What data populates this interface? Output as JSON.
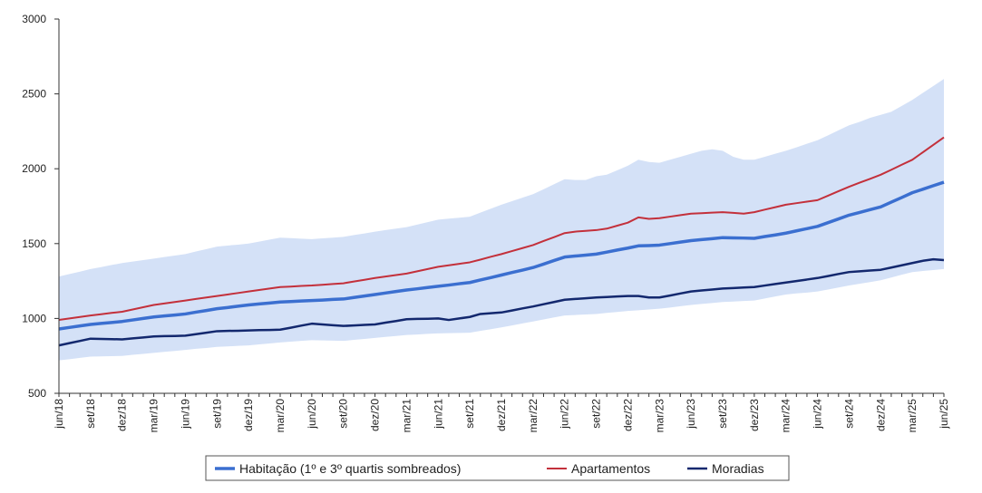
{
  "chart_data": {
    "type": "line",
    "categories": [
      "jun/18",
      null,
      null,
      "set/18",
      null,
      null,
      "dez/18",
      null,
      null,
      "mar/19",
      null,
      null,
      "jun/19",
      null,
      null,
      "set/19",
      null,
      null,
      "dez/19",
      null,
      null,
      "mar/20",
      null,
      null,
      "jun/20",
      null,
      null,
      "set/20",
      null,
      null,
      "dez/20",
      null,
      null,
      "mar/21",
      null,
      null,
      "jun/21",
      null,
      null,
      "set/21",
      null,
      null,
      "dez/21",
      null,
      null,
      "mar/22",
      null,
      null,
      "jun/22",
      null,
      null,
      "set/22",
      null,
      null,
      "dez/22",
      null,
      null,
      "mar/23",
      null,
      null,
      "jun/23",
      null,
      null,
      "set/23",
      null,
      null,
      "dez/23",
      null,
      null,
      "mar/24",
      null,
      null,
      "jun/24",
      null,
      null,
      "set/24",
      null,
      null,
      "dez/24",
      null,
      null,
      "mar/25",
      null,
      null,
      "jun/25"
    ],
    "band": {
      "color": "#d4e1f7",
      "upper": [
        1280,
        1297,
        1313,
        1330,
        1343,
        1357,
        1370,
        1380,
        1390,
        1400,
        1410,
        1420,
        1430,
        1447,
        1463,
        1480,
        1487,
        1493,
        1500,
        1513,
        1527,
        1540,
        1537,
        1533,
        1530,
        1535,
        1540,
        1545,
        1557,
        1568,
        1580,
        1590,
        1600,
        1610,
        1627,
        1643,
        1660,
        1667,
        1673,
        1680,
        1707,
        1733,
        1760,
        1783,
        1807,
        1830,
        1863,
        1897,
        1930,
        1925,
        1925,
        1950,
        1960,
        1990,
        2020,
        2060,
        2045,
        2040,
        2060,
        2080,
        2100,
        2120,
        2130,
        2120,
        2080,
        2060,
        2060,
        2080,
        2100,
        2120,
        2143,
        2167,
        2190,
        2223,
        2257,
        2290,
        2313,
        2340,
        2360,
        2380,
        2420,
        2460,
        2507,
        2553,
        2600
      ],
      "lower": [
        720,
        728,
        737,
        745,
        747,
        748,
        750,
        757,
        763,
        770,
        777,
        783,
        790,
        797,
        803,
        810,
        813,
        817,
        820,
        827,
        833,
        840,
        845,
        850,
        855,
        853,
        852,
        850,
        857,
        863,
        870,
        877,
        883,
        890,
        893,
        897,
        900,
        902,
        903,
        905,
        917,
        928,
        940,
        953,
        967,
        980,
        993,
        1007,
        1020,
        1023,
        1027,
        1030,
        1037,
        1043,
        1050,
        1055,
        1060,
        1065,
        1073,
        1082,
        1090,
        1097,
        1103,
        1110,
        1113,
        1117,
        1120,
        1133,
        1147,
        1160,
        1167,
        1173,
        1180,
        1193,
        1207,
        1220,
        1232,
        1243,
        1255,
        1273,
        1292,
        1310,
        1317,
        1323,
        1330
      ]
    },
    "series": [
      {
        "name": "Habitação (1º e 3º quartis sombreados)",
        "color": "#3b6fd0",
        "width": 3.5,
        "values": [
          930,
          940,
          950,
          960,
          967,
          973,
          980,
          990,
          1000,
          1010,
          1017,
          1023,
          1030,
          1042,
          1053,
          1065,
          1073,
          1082,
          1090,
          1097,
          1103,
          1110,
          1113,
          1117,
          1120,
          1123,
          1127,
          1130,
          1140,
          1150,
          1160,
          1170,
          1180,
          1190,
          1198,
          1207,
          1215,
          1223,
          1232,
          1240,
          1257,
          1273,
          1290,
          1307,
          1323,
          1340,
          1363,
          1387,
          1410,
          1417,
          1423,
          1430,
          1443,
          1457,
          1470,
          1485,
          1487,
          1490,
          1500,
          1510,
          1520,
          1527,
          1533,
          1540,
          1538,
          1537,
          1535,
          1547,
          1558,
          1570,
          1585,
          1600,
          1615,
          1640,
          1665,
          1690,
          1708,
          1727,
          1745,
          1777,
          1808,
          1840,
          1863,
          1887,
          1910
        ]
      },
      {
        "name": "Apartamentos",
        "color": "#c3303b",
        "width": 2,
        "values": [
          990,
          1000,
          1010,
          1020,
          1028,
          1037,
          1045,
          1060,
          1075,
          1090,
          1100,
          1110,
          1120,
          1130,
          1140,
          1150,
          1160,
          1170,
          1180,
          1190,
          1200,
          1210,
          1213,
          1217,
          1220,
          1225,
          1230,
          1235,
          1247,
          1258,
          1270,
          1280,
          1290,
          1300,
          1315,
          1330,
          1345,
          1355,
          1365,
          1375,
          1393,
          1412,
          1430,
          1450,
          1470,
          1490,
          1517,
          1543,
          1570,
          1580,
          1585,
          1590,
          1600,
          1620,
          1640,
          1675,
          1665,
          1670,
          1680,
          1690,
          1700,
          1703,
          1707,
          1710,
          1705,
          1700,
          1710,
          1727,
          1743,
          1760,
          1770,
          1780,
          1790,
          1820,
          1850,
          1880,
          1907,
          1933,
          1960,
          1993,
          2027,
          2060,
          2110,
          2160,
          2210
        ]
      },
      {
        "name": "Moradias",
        "color": "#13286e",
        "width": 2.5,
        "values": [
          820,
          835,
          850,
          865,
          863,
          862,
          860,
          867,
          873,
          880,
          882,
          883,
          885,
          895,
          905,
          915,
          917,
          918,
          920,
          922,
          923,
          925,
          938,
          952,
          965,
          960,
          955,
          950,
          953,
          957,
          960,
          972,
          983,
          995,
          997,
          998,
          1000,
          990,
          1000,
          1010,
          1030,
          1035,
          1040,
          1053,
          1067,
          1080,
          1095,
          1110,
          1125,
          1130,
          1135,
          1140,
          1143,
          1147,
          1150,
          1150,
          1140,
          1140,
          1153,
          1167,
          1180,
          1187,
          1193,
          1200,
          1203,
          1207,
          1210,
          1220,
          1230,
          1240,
          1250,
          1260,
          1270,
          1283,
          1297,
          1310,
          1315,
          1320,
          1325,
          1340,
          1355,
          1370,
          1385,
          1395,
          1390
        ]
      }
    ],
    "ylim": [
      500,
      3000
    ],
    "yticks": [
      500,
      1000,
      1500,
      2000,
      2500,
      3000
    ],
    "grid": false
  }
}
